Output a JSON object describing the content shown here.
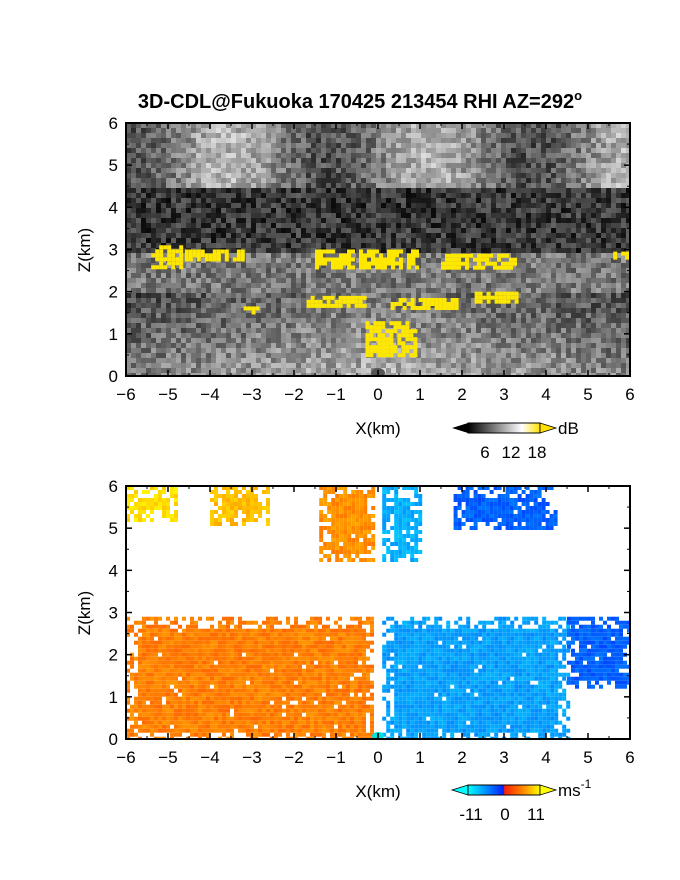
{
  "chart_data": [
    {
      "type": "heatmap",
      "title": "3D-CDL@Fukuoka 170425 213454 RHI AZ=292",
      "title_superscript": "o",
      "xlabel": "X(km)",
      "ylabel": "Z(km)",
      "xlim": [
        -6,
        6
      ],
      "ylim": [
        0,
        6
      ],
      "xticks": [
        "-6",
        "-5",
        "-4",
        "-3",
        "-2",
        "-1",
        "0",
        "1",
        "2",
        "3",
        "4",
        "5",
        "6"
      ],
      "yticks": [
        "0",
        "1",
        "2",
        "3",
        "4",
        "5",
        "6"
      ],
      "colorbar": {
        "label": "dB",
        "ticks": [
          "6",
          "12",
          "18"
        ],
        "range": [
          0,
          21
        ],
        "colors": [
          "#000000",
          "#808080",
          "#ffffff",
          "#ffe000"
        ]
      },
      "description_layers": "grayscale backscatter intensity with yellow high-signal patches",
      "yellow_patches_km": [
        {
          "x": [
            -5.4,
            -4.7
          ],
          "z": [
            2.55,
            3.1
          ]
        },
        {
          "x": [
            -4.6,
            -3.2
          ],
          "z": [
            2.75,
            3.0
          ]
        },
        {
          "x": [
            -1.5,
            0.9
          ],
          "z": [
            2.55,
            3.0
          ]
        },
        {
          "x": [
            1.5,
            3.3
          ],
          "z": [
            2.55,
            2.9
          ]
        },
        {
          "x": [
            -1.7,
            -0.3
          ],
          "z": [
            1.65,
            1.9
          ]
        },
        {
          "x": [
            0.3,
            1.9
          ],
          "z": [
            1.6,
            1.85
          ]
        },
        {
          "x": [
            2.3,
            3.4
          ],
          "z": [
            1.75,
            2.0
          ]
        },
        {
          "x": [
            -0.3,
            0.9
          ],
          "z": [
            0.5,
            1.3
          ]
        },
        {
          "x": [
            -3.2,
            -2.9
          ],
          "z": [
            1.5,
            1.65
          ]
        },
        {
          "x": [
            5.6,
            6.0
          ],
          "z": [
            2.8,
            2.95
          ]
        }
      ]
    },
    {
      "type": "heatmap",
      "xlabel": "X(km)",
      "ylabel": "Z(km)",
      "xlim": [
        -6,
        6
      ],
      "ylim": [
        0,
        6
      ],
      "xticks": [
        "-6",
        "-5",
        "-4",
        "-3",
        "-2",
        "-1",
        "0",
        "1",
        "2",
        "3",
        "4",
        "5",
        "6"
      ],
      "yticks": [
        "0",
        "1",
        "2",
        "3",
        "4",
        "5",
        "6"
      ],
      "colorbar": {
        "label": "ms",
        "label_superscript": "-1",
        "ticks": [
          "-11",
          "0",
          "11"
        ],
        "range": [
          -14,
          14
        ],
        "colors": [
          "#00ffff",
          "#00a0ff",
          "#0020ff",
          "#ff2000",
          "#ff8000",
          "#ffff00"
        ]
      },
      "regions_ms": [
        {
          "x": [
            -6,
            -0.1
          ],
          "z": [
            0,
            2.9
          ],
          "velocity": 6
        },
        {
          "x": [
            0.1,
            4.5
          ],
          "z": [
            0,
            2.9
          ],
          "velocity": -8
        },
        {
          "x": [
            4.5,
            6
          ],
          "z": [
            1.2,
            2.9
          ],
          "velocity": -4
        },
        {
          "x": [
            -6,
            -4.8
          ],
          "z": [
            5.2,
            6
          ],
          "velocity": 12
        },
        {
          "x": [
            -4,
            -2.6
          ],
          "z": [
            5.1,
            6
          ],
          "velocity": 10
        },
        {
          "x": [
            -1.4,
            -0.1
          ],
          "z": [
            4.2,
            6
          ],
          "velocity": 7
        },
        {
          "x": [
            0.1,
            1.0
          ],
          "z": [
            4.2,
            6
          ],
          "velocity": -9
        },
        {
          "x": [
            1.8,
            4.2
          ],
          "z": [
            5.0,
            6
          ],
          "velocity": -4
        }
      ]
    }
  ]
}
